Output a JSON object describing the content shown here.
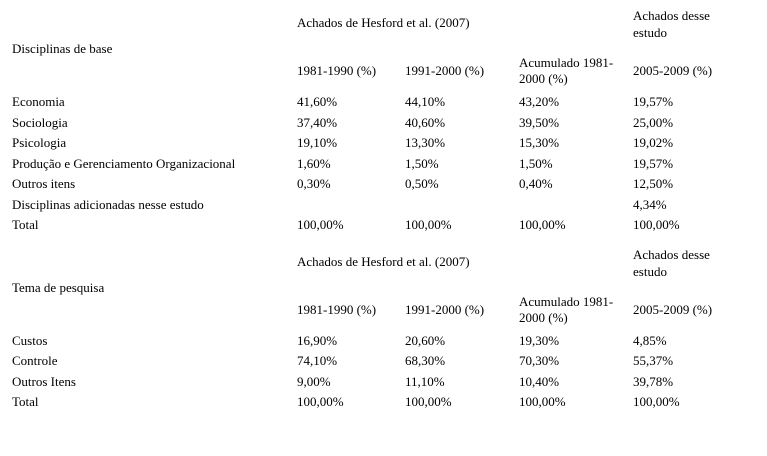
{
  "document": {
    "background_color": "#ffffff",
    "text_color": "#000000"
  },
  "tables": [
    {
      "row_header_title": "Disciplinas de base",
      "group_header": "Achados de Hesford et al. (2007)",
      "study_header": "Achados desse estudo",
      "col_headers": [
        "1981-1990 (%)",
        "1991-2000 (%)",
        "Acumulado 1981-2000 (%)",
        "2005-2009 (%)"
      ],
      "rows": [
        {
          "label": "Economia",
          "values": [
            "41,60%",
            "44,10%",
            "43,20%",
            "19,57%"
          ]
        },
        {
          "label": "Sociologia",
          "values": [
            "37,40%",
            "40,60%",
            "39,50%",
            "25,00%"
          ]
        },
        {
          "label": "Psicologia",
          "values": [
            "19,10%",
            "13,30%",
            "15,30%",
            "19,02%"
          ]
        },
        {
          "label": "Produção e Gerenciamento Organizacional",
          "values": [
            "1,60%",
            "1,50%",
            "1,50%",
            "19,57%"
          ]
        },
        {
          "label": "Outros itens",
          "values": [
            "0,30%",
            "0,50%",
            "0,40%",
            "12,50%"
          ]
        },
        {
          "label": "Disciplinas adicionadas nesse estudo",
          "values": [
            "",
            "",
            "",
            "4,34%"
          ]
        },
        {
          "label": "Total",
          "values": [
            "100,00%",
            "100,00%",
            "100,00%",
            "100,00%"
          ]
        }
      ]
    },
    {
      "row_header_title": "Tema de pesquisa",
      "group_header": "Achados de Hesford et al. (2007)",
      "study_header": "Achados desse estudo",
      "col_headers": [
        "1981-1990 (%)",
        "1991-2000 (%)",
        "Acumulado 1981-2000 (%)",
        "2005-2009 (%)"
      ],
      "rows": [
        {
          "label": "Custos",
          "values": [
            "16,90%",
            "20,60%",
            "19,30%",
            "4,85%"
          ]
        },
        {
          "label": "Controle",
          "values": [
            "74,10%",
            "68,30%",
            "70,30%",
            "55,37%"
          ]
        },
        {
          "label": "Outros Itens",
          "values": [
            "9,00%",
            "11,10%",
            "10,40%",
            "39,78%"
          ]
        },
        {
          "label": "Total",
          "values": [
            "100,00%",
            "100,00%",
            "100,00%",
            "100,00%"
          ]
        }
      ]
    }
  ]
}
